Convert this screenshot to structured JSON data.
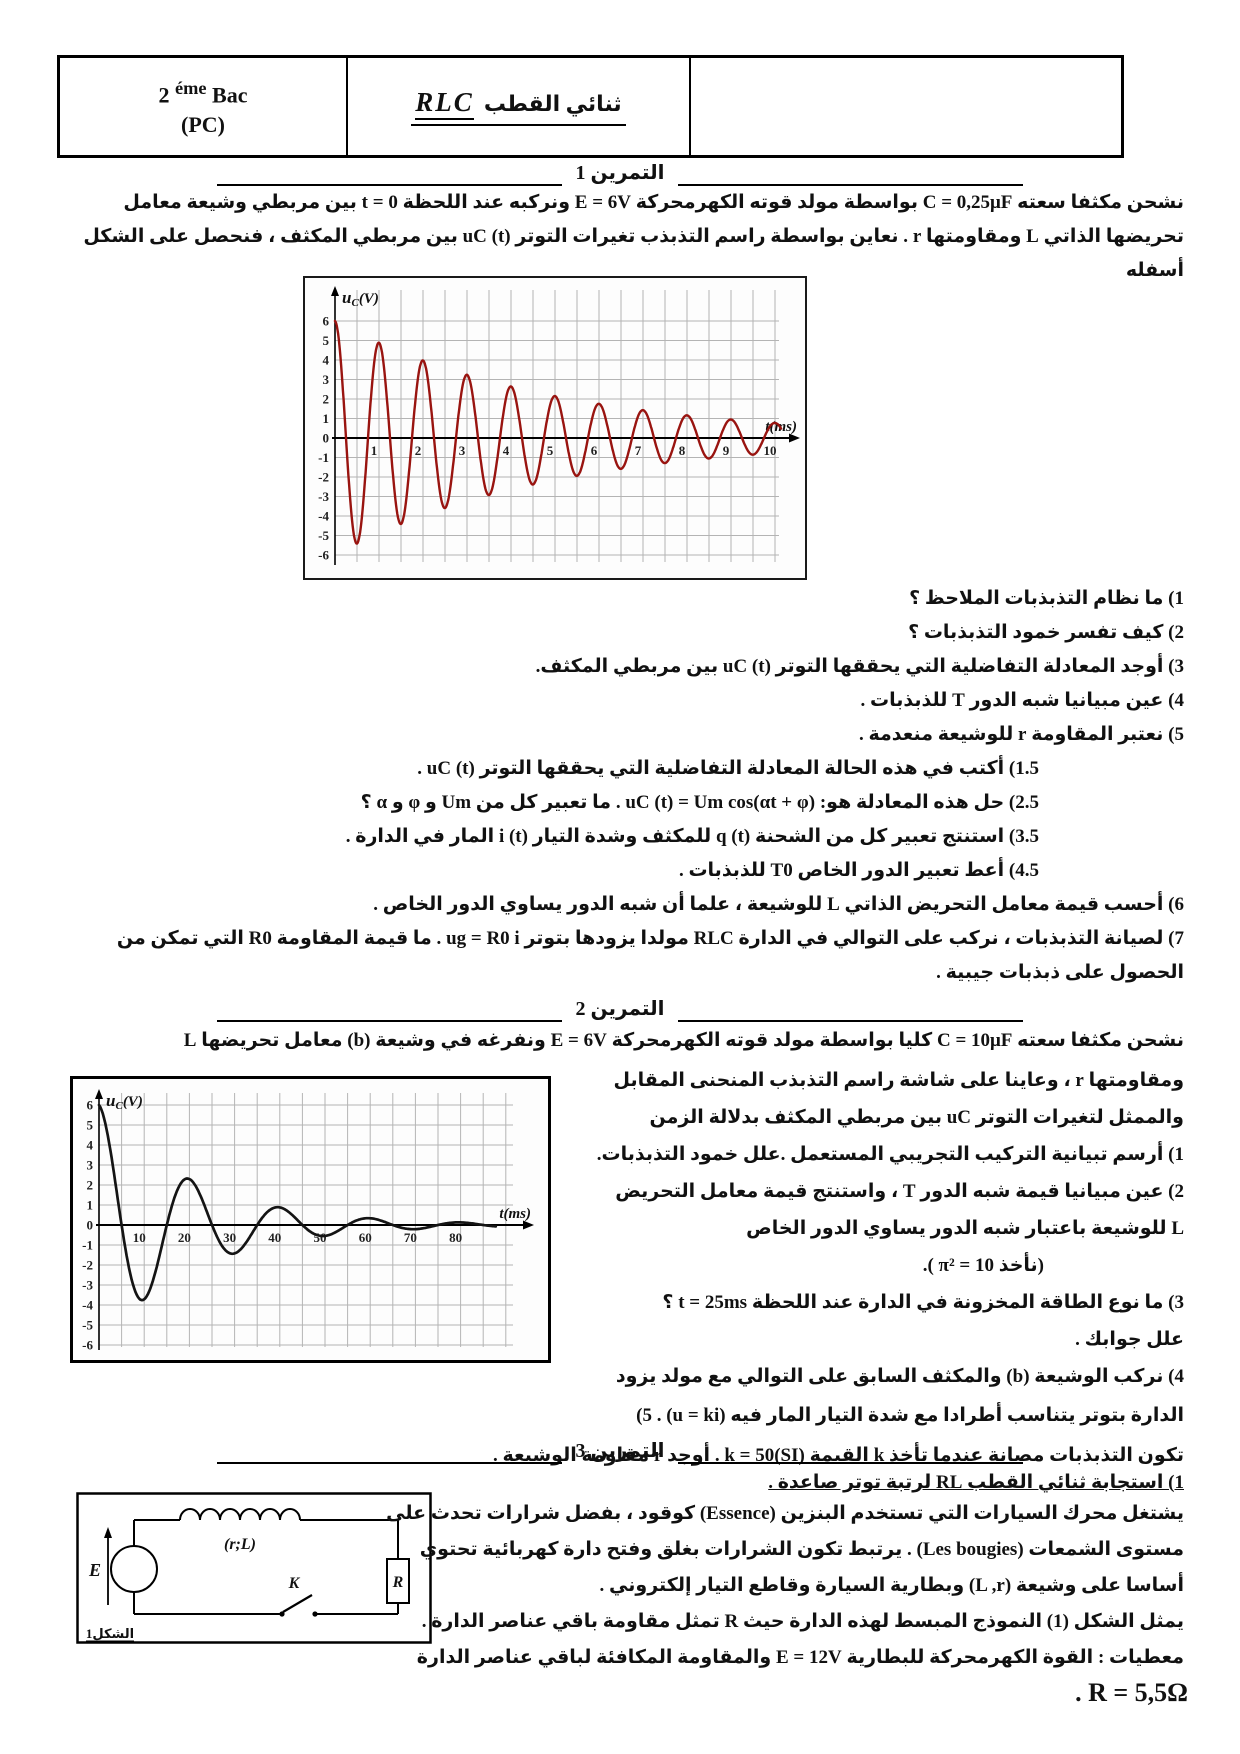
{
  "header": {
    "grade_num": "2",
    "grade_sup": "éme",
    "grade_word": "Bac",
    "grade_line2": "(PC)",
    "title_latin": "RLC",
    "title_arabic": "ثنائي القطب"
  },
  "ex1": {
    "title": "التمرين 1",
    "intro": "نشحن مكثفا سعته  C = 0,25μF  بواسطة مولد قوته الكهرمحركة  E = 6V  ونركبه عند اللحظة  t = 0  بين مربطي وشيعة معامل تحريضها الذاتي  L  ومقاومتها  r . نعاين بواسطة راسم التذبذب تغيرات التوتر  uC (t)  بين مربطي المكثف ، فنحصل على الشكل أسفله",
    "questions": [
      "1) ما نظام التذبذبات الملاحظ ؟",
      "2) كيف تفسر خمود التذبذبات ؟",
      "3) أوجد المعادلة التفاضلية التي يحققها التوتر  uC (t)  بين مربطي المكثف.",
      "4) عين مبيانيا شبه الدور  T  للذبذبات .",
      "5) نعتبر المقاومة  r  للوشيعة منعدمة .",
      "1.5) أكتب في هذه الحالة المعادلة التفاضلية التي يحققها التوتر  uC (t) .",
      "2.5) حل هذه المعادلة هو: uC (t) = Um cos(αt + φ) . ما تعبير كل من  Um  و  φ  و  α ؟",
      "3.5) استنتج تعبير كل من الشحنة  q (t)  للمكثف وشدة التيار  i (t)  المار في الدارة .",
      "4.5) أعط تعبير الدور الخاص  T0  للذبذبات .",
      "6) أحسب قيمة معامل التحريض الذاتي  L  للوشيعة ، علما أن شبه الدور يساوي الدور الخاص .",
      "7) لصيانة التذبذبات ، نركب على التوالي في الدارة  RLC  مولدا يزودها بتوتر  ug = R0 i . ما قيمة المقاومة  R0  التي تمكن من الحصول على ذبذبات جيبية ."
    ]
  },
  "ex2": {
    "title": "التمرين 2",
    "intro": "نشحن مكثفا سعته  C = 10μF  كليا بواسطة مولد قوته الكهرمحركة  E = 6V  ونفرغه في وشيعة  (b)  معامل تحريضها  L",
    "side": [
      "ومقاومتها  r  ، وعاينا على شاشة راسم التذبذب المنحنى المقابل",
      "والممثل لتغيرات التوتر  uC  بين مربطي المكثف بدلالة الزمن",
      "1) أرسم تبيانية التركيب التجريبي المستعمل .علل خمود التذبذبات.",
      "2) عين مبيانيا قيمة شبه الدور  T  ، واستنتج قيمة معامل التحريض",
      "L  للوشيعة باعتبار شبه الدور يساوي الدور الخاص",
      "(نأخذ  π² = 10 ).",
      "3) ما نوع الطاقة المخزونة في الدارة عند اللحظة  t = 25ms  ؟",
      "علل جوابك .",
      "4) نركب الوشيعة  (b)  والمكثف السابق على التوالي مع مولد يزود"
    ],
    "wide": [
      "الدارة بتوتر يتناسب أطرادا مع شدة التيار المار فيه  (u = ki) . 5)",
      "تكون التذبذبات مصانة عندما تأخذ  k  القيمة  k = 50(SI) . أوجد  r  مقاومة الوشيعة ."
    ]
  },
  "ex3": {
    "title": "التمرين 3",
    "q1": "1) استجابة ثنائي القطب  RL  لرتبة توتر صاعدة .",
    "lines": [
      "يشتغل محرك السيارات التي تستخدم البنزين (Essence) كوقود ، بفضل شرارات تحدث على",
      "مستوى الشمعات (Les bougies) . يرتبط تكون الشرارات بغلق وفتح دارة كهربائية تحتوي",
      "أساسا على وشيعة  (L ,r)  وبطارية السيارة وقاطع التيار إلكتروني .",
      "يمثل الشكل (1) النموذج المبسط لهذه الدارة حيث  R  تمثل مقاومة باقي عناصر الدارة .",
      "معطيات : القوة الكهرمحركة للبطارية  E = 12V  والمقاومة المكافئة لباقي عناصر الدارة"
    ],
    "final_value": "R = 5,5Ω .",
    "circuit": {
      "coil_label": "(r;L)",
      "resistor_label": "R",
      "source_label": "E",
      "switch_label": "K",
      "figure_label": "الشكل1"
    }
  },
  "chart_data": [
    {
      "type": "line",
      "title": "",
      "ylabel": "uC(V)",
      "xlabel": "t(ms)",
      "xlim": [
        0,
        10.5
      ],
      "ylim": [
        -6,
        6
      ],
      "x_ticks": [
        1,
        2,
        3,
        4,
        5,
        6,
        7,
        8,
        9,
        10
      ],
      "y_ticks": [
        6,
        5,
        4,
        3,
        2,
        1,
        0,
        -1,
        -2,
        -3,
        -4,
        -5,
        -6
      ],
      "x_grid_step": 0.5,
      "y_grid_step": 1,
      "grid": true,
      "grid_color": "#b4b4b4",
      "legend": "none",
      "series": [
        {
          "name": "uC",
          "color": "#991410",
          "model": "damped_cosine",
          "amplitude_V": 6,
          "pseudo_period_ms": 1,
          "decay_per_ms": 0.205,
          "t_end_ms": 10.15,
          "points": [
            [
              0,
              6
            ],
            [
              0.5,
              -5.4
            ],
            [
              1,
              4.9
            ],
            [
              1.5,
              -4.4
            ],
            [
              2,
              4.0
            ],
            [
              2.5,
              -3.6
            ],
            [
              3,
              3.3
            ],
            [
              3.5,
              -2.9
            ],
            [
              4,
              2.6
            ],
            [
              4.5,
              -2.4
            ],
            [
              5,
              2.2
            ],
            [
              5.5,
              -1.9
            ],
            [
              6,
              1.8
            ],
            [
              6.5,
              -1.6
            ],
            [
              7,
              1.4
            ],
            [
              7.5,
              -1.3
            ],
            [
              8,
              1.2
            ],
            [
              8.5,
              -1.1
            ],
            [
              9,
              1.0
            ],
            [
              9.5,
              -0.9
            ],
            [
              10,
              0.8
            ]
          ]
        }
      ]
    },
    {
      "type": "line",
      "title": "",
      "ylabel": "uC(V)",
      "xlabel": "t(ms)",
      "xlim": [
        0,
        92
      ],
      "ylim": [
        -6,
        6
      ],
      "x_ticks": [
        10,
        20,
        30,
        40,
        50,
        60,
        70,
        80
      ],
      "y_ticks": [
        6,
        5,
        4,
        3,
        2,
        1,
        0,
        -1,
        -2,
        -3,
        -4,
        -5,
        -6
      ],
      "x_grid_step": 5,
      "y_grid_step": 1,
      "grid": true,
      "grid_color": "#b4b4b4",
      "legend": "none",
      "series": [
        {
          "name": "uC",
          "color": "#141414",
          "model": "damped_cosine",
          "amplitude_V": 6,
          "pseudo_period_ms": 20,
          "decay_per_ms": 0.048,
          "t_end_ms": 88,
          "points": [
            [
              0,
              6
            ],
            [
              10,
              -3.7
            ],
            [
              20,
              2.3
            ],
            [
              30,
              -1.4
            ],
            [
              40,
              0.9
            ],
            [
              50,
              -0.5
            ],
            [
              60,
              0.33
            ],
            [
              70,
              -0.2
            ],
            [
              80,
              0.13
            ]
          ]
        }
      ]
    }
  ]
}
